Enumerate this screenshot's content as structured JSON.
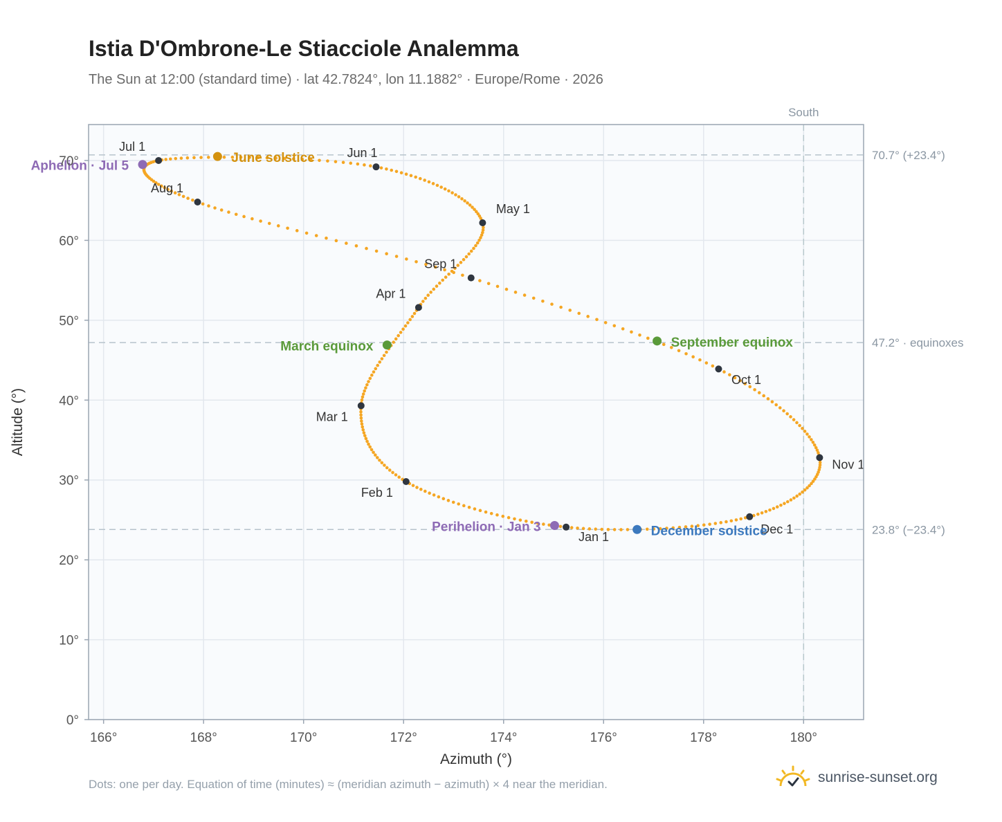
{
  "chart_data": {
    "type": "scatter",
    "title": "Istia D'Ombrone-Le Stiacciole Analemma",
    "subtitle": "The Sun at 12:00 (standard time) · lat 42.7824°, lon 11.1882° · Europe/Rome · 2026",
    "xlabel": "Azimuth (°)",
    "ylabel": "Altitude (°)",
    "xlim": [
      165.7,
      181.2
    ],
    "ylim": [
      0,
      74.5
    ],
    "x_ticks": [
      166,
      168,
      170,
      172,
      174,
      176,
      178,
      180
    ],
    "x_tick_labels": [
      "166°",
      "168°",
      "170°",
      "172°",
      "174°",
      "176°",
      "178°",
      "180°"
    ],
    "y_ticks": [
      0,
      10,
      20,
      30,
      40,
      50,
      60,
      70
    ],
    "y_tick_labels": [
      "0°",
      "10°",
      "20°",
      "30°",
      "40°",
      "50°",
      "60°",
      "70°"
    ],
    "grid": true,
    "south_label": "South",
    "south_azimuth": 180,
    "reference_lines": [
      {
        "y": 70.7,
        "label": "70.7° (+23.4°)"
      },
      {
        "y": 47.2,
        "label": "47.2° · equinoxes"
      },
      {
        "y": 23.8,
        "label": "23.8° (−23.4°)"
      }
    ],
    "monthly_points": [
      {
        "label": "Jan 1",
        "x": 175.25,
        "y": 24.1
      },
      {
        "label": "Feb 1",
        "x": 172.05,
        "y": 29.8
      },
      {
        "label": "Mar 1",
        "x": 171.15,
        "y": 39.3
      },
      {
        "label": "Apr 1",
        "x": 172.3,
        "y": 51.6
      },
      {
        "label": "May 1",
        "x": 173.58,
        "y": 62.2
      },
      {
        "label": "Jun 1",
        "x": 171.45,
        "y": 69.2
      },
      {
        "label": "Jul 1",
        "x": 167.1,
        "y": 70.0
      },
      {
        "label": "Aug 1",
        "x": 167.88,
        "y": 64.8
      },
      {
        "label": "Sep 1",
        "x": 173.35,
        "y": 55.3
      },
      {
        "label": "Oct 1",
        "x": 178.3,
        "y": 43.9
      },
      {
        "label": "Nov 1",
        "x": 180.32,
        "y": 32.8
      },
      {
        "label": "Dec 1",
        "x": 178.92,
        "y": 25.4
      }
    ],
    "events": [
      {
        "label": "Perihelion · Jan 3",
        "x": 175.02,
        "y": 24.3,
        "color": "#8e6bb5"
      },
      {
        "label": "March equinox",
        "x": 171.67,
        "y": 46.9,
        "color": "#5a9a3a"
      },
      {
        "label": "June solstice",
        "x": 168.28,
        "y": 70.5,
        "color": "#d4920f"
      },
      {
        "label": "Aphelion · Jul 5",
        "x": 166.78,
        "y": 69.5,
        "color": "#8e6bb5"
      },
      {
        "label": "September equinox",
        "x": 177.07,
        "y": 47.4,
        "color": "#5a9a3a"
      },
      {
        "label": "December solstice",
        "x": 176.67,
        "y": 23.8,
        "color": "#3c79be"
      }
    ],
    "series_color": "#f5a623",
    "footnote": "Dots: one per day. Equation of time (minutes) ≈ (meridian azimuth − azimuth) × 4 near the meridian."
  },
  "brand": {
    "name": "sunrise-sunset.org",
    "icon": "sun-check-logo"
  }
}
